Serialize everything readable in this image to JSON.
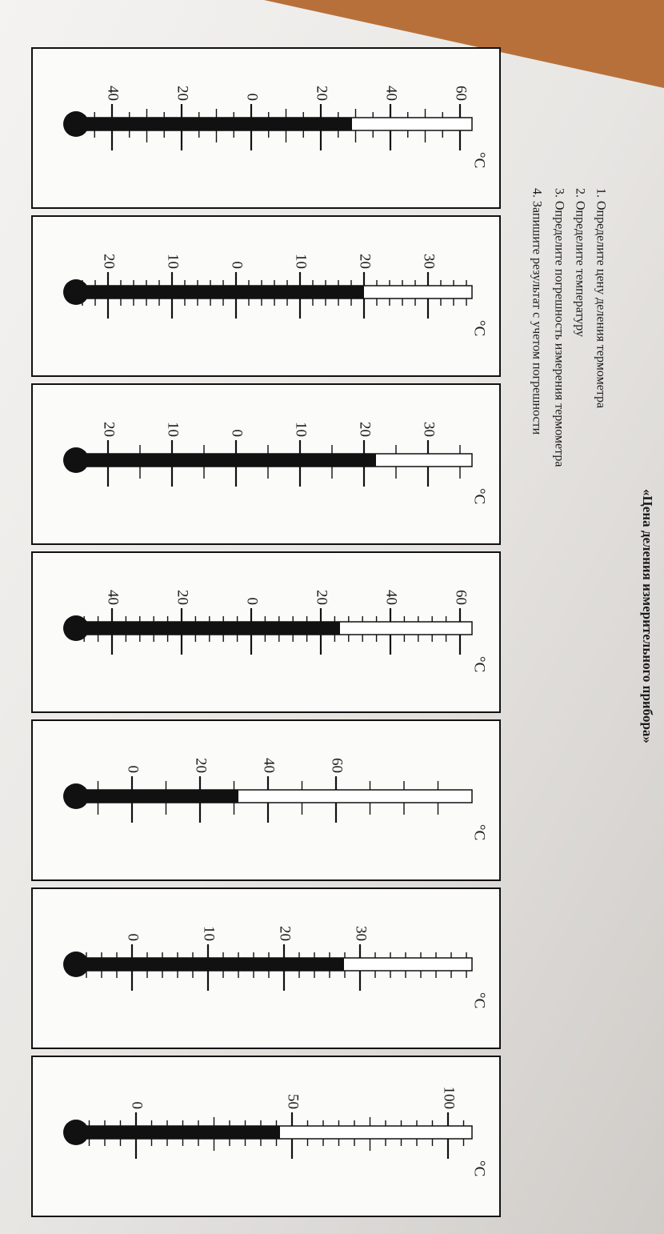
{
  "title": "«Цена деления измерительного прибора»",
  "instructions": [
    "1. Определите цену деления термометра",
    "2. Определите температуру",
    "3. Определите погрешность измерения термометра",
    "4. Запишите результат с учетом погрешности"
  ],
  "thermometers": [
    {
      "unit": "°C",
      "labels": [
        "40",
        "20",
        "0",
        "20",
        "40",
        "60"
      ]
    },
    {
      "unit": "°C",
      "labels": [
        "20",
        "10",
        "0",
        "10",
        "20",
        "30"
      ]
    },
    {
      "unit": "°C",
      "labels": [
        "20",
        "10",
        "0",
        "10",
        "20",
        "30"
      ]
    },
    {
      "unit": "°C",
      "labels": [
        "40",
        "20",
        "0",
        "20",
        "40",
        "60"
      ]
    },
    {
      "unit": "°C",
      "labels": [
        "0",
        "20",
        "40",
        "60"
      ]
    },
    {
      "unit": "°C",
      "labels": [
        "0",
        "10",
        "20",
        "30"
      ]
    },
    {
      "unit": "°C",
      "labels": [
        "0",
        "50",
        "100"
      ]
    }
  ]
}
